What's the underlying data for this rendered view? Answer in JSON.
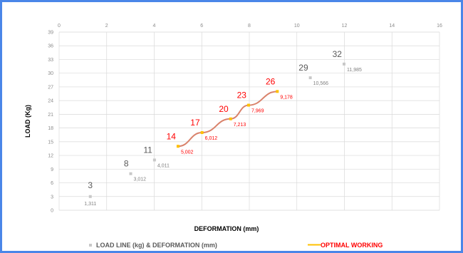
{
  "chart_data": {
    "type": "scatter",
    "xlabel": "DEFORMATION (mm)",
    "ylabel": "LOAD (Kg)",
    "xlim": [
      0,
      16
    ],
    "ylim": [
      0,
      39
    ],
    "x_ticks": [
      "0",
      "2",
      "4",
      "6",
      "8",
      "10",
      "12",
      "14",
      "16"
    ],
    "y_ticks": [
      "0",
      "3",
      "6",
      "9",
      "12",
      "15",
      "18",
      "21",
      "24",
      "27",
      "30",
      "33",
      "36",
      "39"
    ],
    "grid": true,
    "legend_position": "bottom",
    "series": [
      {
        "name": "LOAD LINE (kg) & DEFORMATION (mm)",
        "color": "#c8c8c8",
        "style": "markers",
        "points": [
          {
            "x": 1.311,
            "y": 3,
            "load_label": "3",
            "deform_label": "1,311",
            "optimal": false
          },
          {
            "x": 3.012,
            "y": 8,
            "load_label": "8",
            "deform_label": "3,012",
            "optimal": false
          },
          {
            "x": 4.011,
            "y": 11,
            "load_label": "11",
            "deform_label": "4,011",
            "optimal": false
          },
          {
            "x": 5.002,
            "y": 14,
            "load_label": "14",
            "deform_label": "5,002",
            "optimal": true
          },
          {
            "x": 6.012,
            "y": 17,
            "load_label": "17",
            "deform_label": "6,012",
            "optimal": true
          },
          {
            "x": 7.213,
            "y": 20,
            "load_label": "20",
            "deform_label": "7,213",
            "optimal": true
          },
          {
            "x": 7.969,
            "y": 23,
            "load_label": "23",
            "deform_label": "7,969",
            "optimal": true
          },
          {
            "x": 9.178,
            "y": 26,
            "load_label": "26",
            "deform_label": "9,178",
            "optimal": true
          },
          {
            "x": 10.566,
            "y": 29,
            "load_label": "29",
            "deform_label": "10,566",
            "optimal": false
          },
          {
            "x": 11.985,
            "y": 32,
            "load_label": "32",
            "deform_label": "11,985",
            "optimal": false
          }
        ]
      },
      {
        "name": "OPTIMAL WORKING",
        "color": "#d9826b",
        "marker_color": "#ffc000",
        "style": "line",
        "points": [
          {
            "x": 5.002,
            "y": 14
          },
          {
            "x": 6.012,
            "y": 17
          },
          {
            "x": 7.213,
            "y": 20
          },
          {
            "x": 7.969,
            "y": 23
          },
          {
            "x": 9.178,
            "y": 26
          }
        ]
      }
    ],
    "label_colors": {
      "normal_load": "#595959",
      "normal_deform": "#7f7f7f",
      "optimal": "#ff0000"
    }
  },
  "legend": {
    "series_a_label": "LOAD LINE (kg) & DEFORMATION (mm)",
    "series_b_label": "OPTIMAL WORKING"
  }
}
